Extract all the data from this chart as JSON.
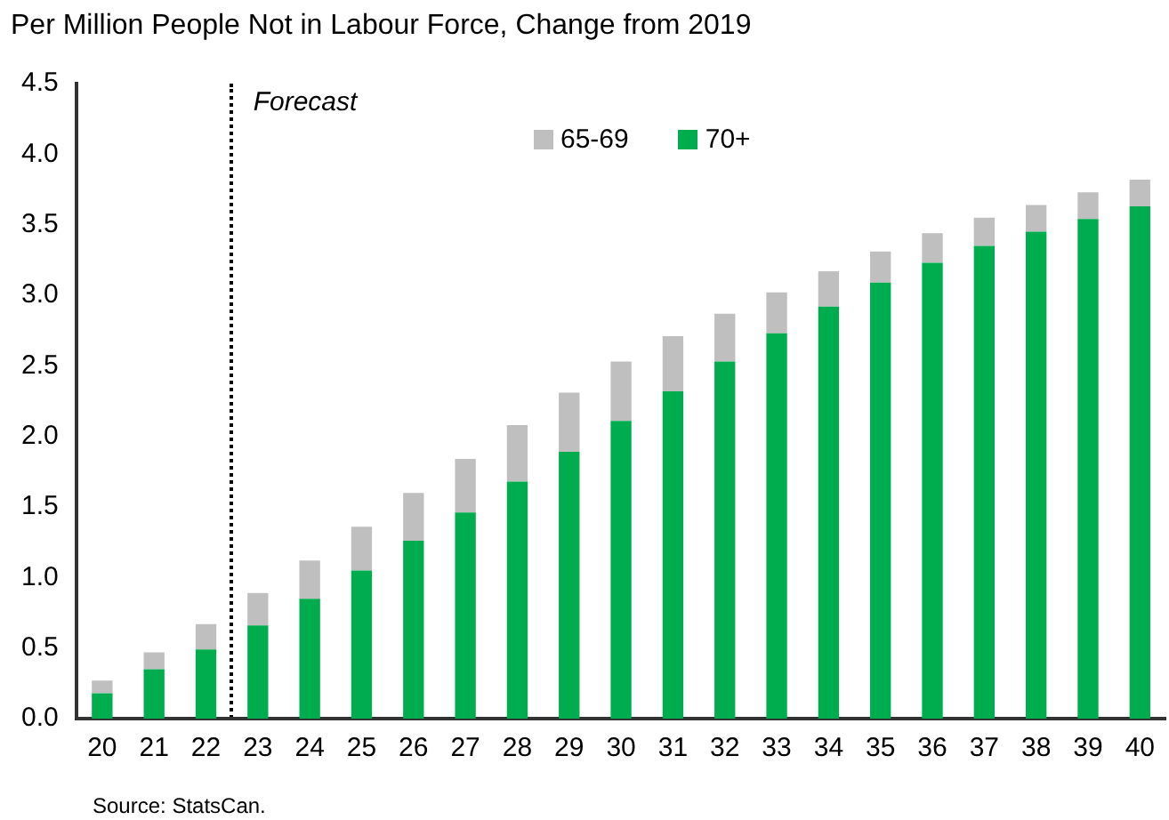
{
  "chart_data": {
    "type": "bar",
    "title": "Per Million People Not in Labour Force, Change from 2019",
    "categories": [
      "20",
      "21",
      "22",
      "23",
      "24",
      "25",
      "26",
      "27",
      "28",
      "29",
      "30",
      "31",
      "32",
      "33",
      "34",
      "35",
      "36",
      "37",
      "38",
      "39",
      "40"
    ],
    "stacked": true,
    "series": [
      {
        "name": "70+",
        "color": "#00ad4e",
        "values": [
          0.18,
          0.35,
          0.49,
          0.66,
          0.85,
          1.05,
          1.26,
          1.46,
          1.68,
          1.89,
          2.11,
          2.32,
          2.53,
          2.73,
          2.92,
          3.09,
          3.23,
          3.35,
          3.45,
          3.54,
          3.63
        ]
      },
      {
        "name": "65-69",
        "color": "#bfbfbf",
        "values": [
          0.09,
          0.12,
          0.18,
          0.23,
          0.27,
          0.31,
          0.34,
          0.38,
          0.4,
          0.42,
          0.42,
          0.39,
          0.34,
          0.29,
          0.25,
          0.22,
          0.21,
          0.2,
          0.19,
          0.19,
          0.19
        ]
      }
    ],
    "ylim": [
      0,
      4.5
    ],
    "yticks": [
      {
        "value": 0,
        "label": "0.0"
      },
      {
        "value": 0.5,
        "label": "0.5"
      },
      {
        "value": 1,
        "label": "1.0"
      },
      {
        "value": 1.5,
        "label": "1.5"
      },
      {
        "value": 2,
        "label": "2.0"
      },
      {
        "value": 2.5,
        "label": "2.5"
      },
      {
        "value": 3,
        "label": "3.0"
      },
      {
        "value": 3.5,
        "label": "3.5"
      },
      {
        "value": 4,
        "label": "4.0"
      },
      {
        "value": 4.5,
        "label": "4.5"
      }
    ],
    "grid": false,
    "legend": "top right",
    "annotations": [
      "Forecast",
      "Source: StatsCan."
    ]
  }
}
